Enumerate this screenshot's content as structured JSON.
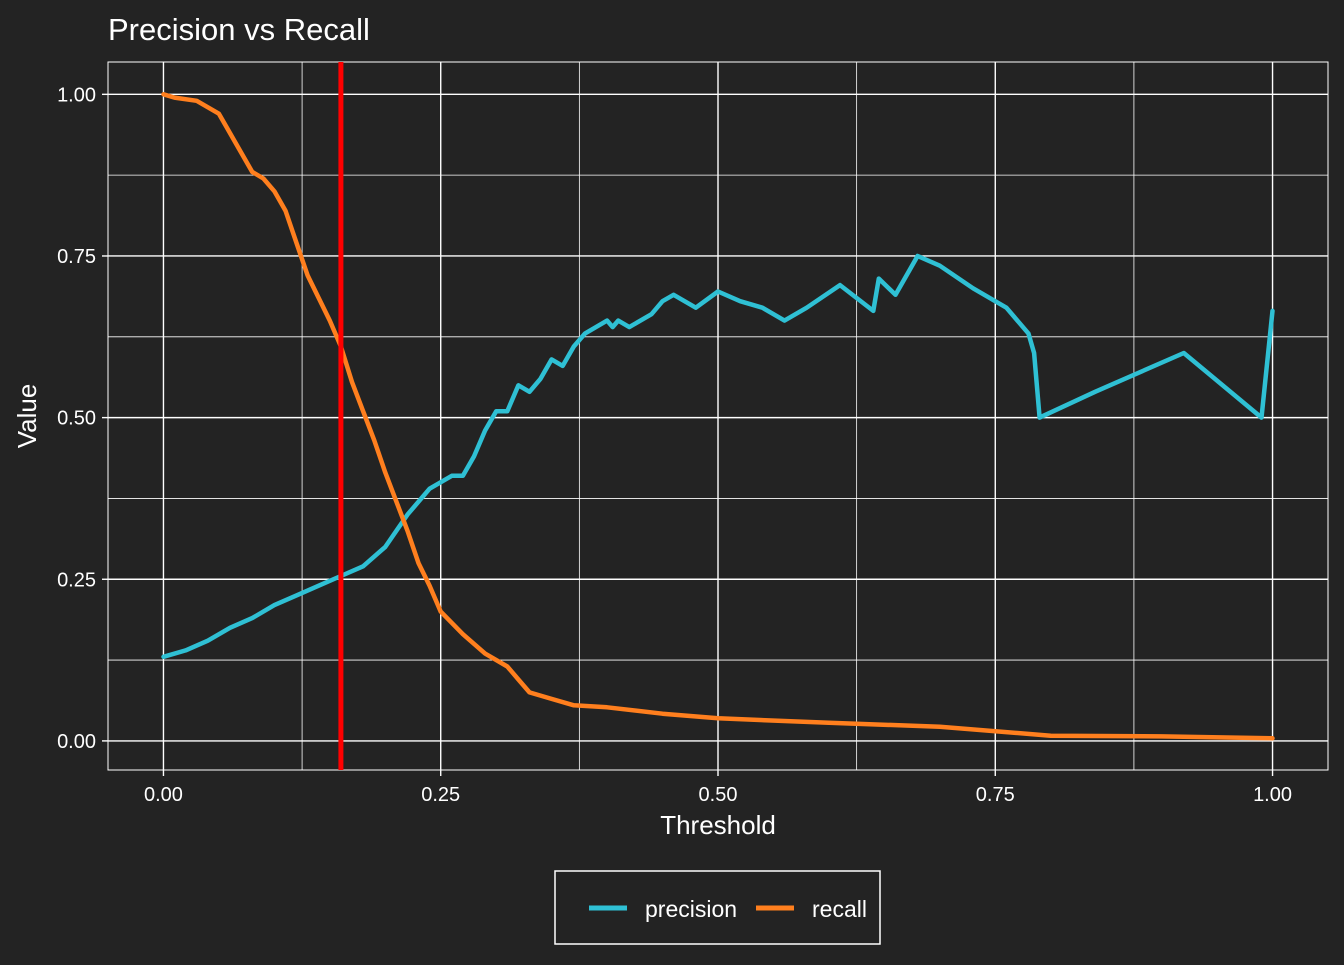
{
  "chart_data": {
    "type": "line",
    "title": "Precision vs Recall",
    "xlabel": "Threshold",
    "ylabel": "Value",
    "xlim": [
      -0.05,
      1.05
    ],
    "ylim": [
      -0.045,
      1.05
    ],
    "x_ticks": [
      0,
      0.25,
      0.5,
      0.75,
      1
    ],
    "x_tick_labels": [
      "0.00",
      "0.25",
      "0.50",
      "0.75",
      "1.00"
    ],
    "y_ticks": [
      0,
      0.25,
      0.5,
      0.75,
      1
    ],
    "y_tick_labels": [
      "0.00",
      "0.25",
      "0.50",
      "0.75",
      "1.00"
    ],
    "grid": true,
    "legend_position": "bottom",
    "background_color": "#232323",
    "grid_color": "#ffffff",
    "text_color": "#ffffff",
    "vline": {
      "x": 0.16,
      "color": "#ff0000"
    },
    "series": [
      {
        "name": "precision",
        "color": "#2fc0d4",
        "x": [
          0.0,
          0.02,
          0.04,
          0.06,
          0.08,
          0.1,
          0.12,
          0.14,
          0.16,
          0.18,
          0.2,
          0.22,
          0.24,
          0.26,
          0.27,
          0.28,
          0.29,
          0.3,
          0.31,
          0.32,
          0.33,
          0.34,
          0.35,
          0.36,
          0.37,
          0.38,
          0.4,
          0.405,
          0.41,
          0.42,
          0.44,
          0.45,
          0.46,
          0.48,
          0.5,
          0.52,
          0.54,
          0.56,
          0.58,
          0.61,
          0.64,
          0.645,
          0.66,
          0.68,
          0.7,
          0.73,
          0.76,
          0.78,
          0.785,
          0.79,
          0.84,
          0.92,
          0.99,
          1.0
        ],
        "y": [
          0.13,
          0.14,
          0.155,
          0.175,
          0.19,
          0.21,
          0.225,
          0.24,
          0.255,
          0.27,
          0.3,
          0.35,
          0.39,
          0.41,
          0.41,
          0.44,
          0.48,
          0.51,
          0.51,
          0.55,
          0.54,
          0.56,
          0.59,
          0.58,
          0.61,
          0.63,
          0.65,
          0.64,
          0.65,
          0.64,
          0.66,
          0.68,
          0.69,
          0.67,
          0.695,
          0.68,
          0.67,
          0.65,
          0.67,
          0.705,
          0.665,
          0.715,
          0.69,
          0.75,
          0.735,
          0.7,
          0.67,
          0.63,
          0.6,
          0.5,
          0.54,
          0.6,
          0.5,
          0.665
        ]
      },
      {
        "name": "recall",
        "color": "#ff7f1e",
        "x": [
          0.0,
          0.01,
          0.03,
          0.05,
          0.06,
          0.07,
          0.08,
          0.09,
          0.1,
          0.11,
          0.12,
          0.13,
          0.14,
          0.15,
          0.16,
          0.17,
          0.18,
          0.19,
          0.2,
          0.21,
          0.22,
          0.23,
          0.24,
          0.25,
          0.27,
          0.29,
          0.31,
          0.32,
          0.33,
          0.35,
          0.37,
          0.4,
          0.45,
          0.5,
          0.6,
          0.7,
          0.8,
          0.9,
          1.0
        ],
        "y": [
          1.0,
          0.995,
          0.99,
          0.97,
          0.94,
          0.91,
          0.88,
          0.87,
          0.85,
          0.82,
          0.77,
          0.72,
          0.685,
          0.65,
          0.61,
          0.555,
          0.51,
          0.465,
          0.415,
          0.37,
          0.325,
          0.275,
          0.24,
          0.2,
          0.165,
          0.135,
          0.115,
          0.095,
          0.075,
          0.065,
          0.055,
          0.052,
          0.042,
          0.035,
          0.028,
          0.022,
          0.008,
          0.007,
          0.004
        ]
      }
    ]
  }
}
